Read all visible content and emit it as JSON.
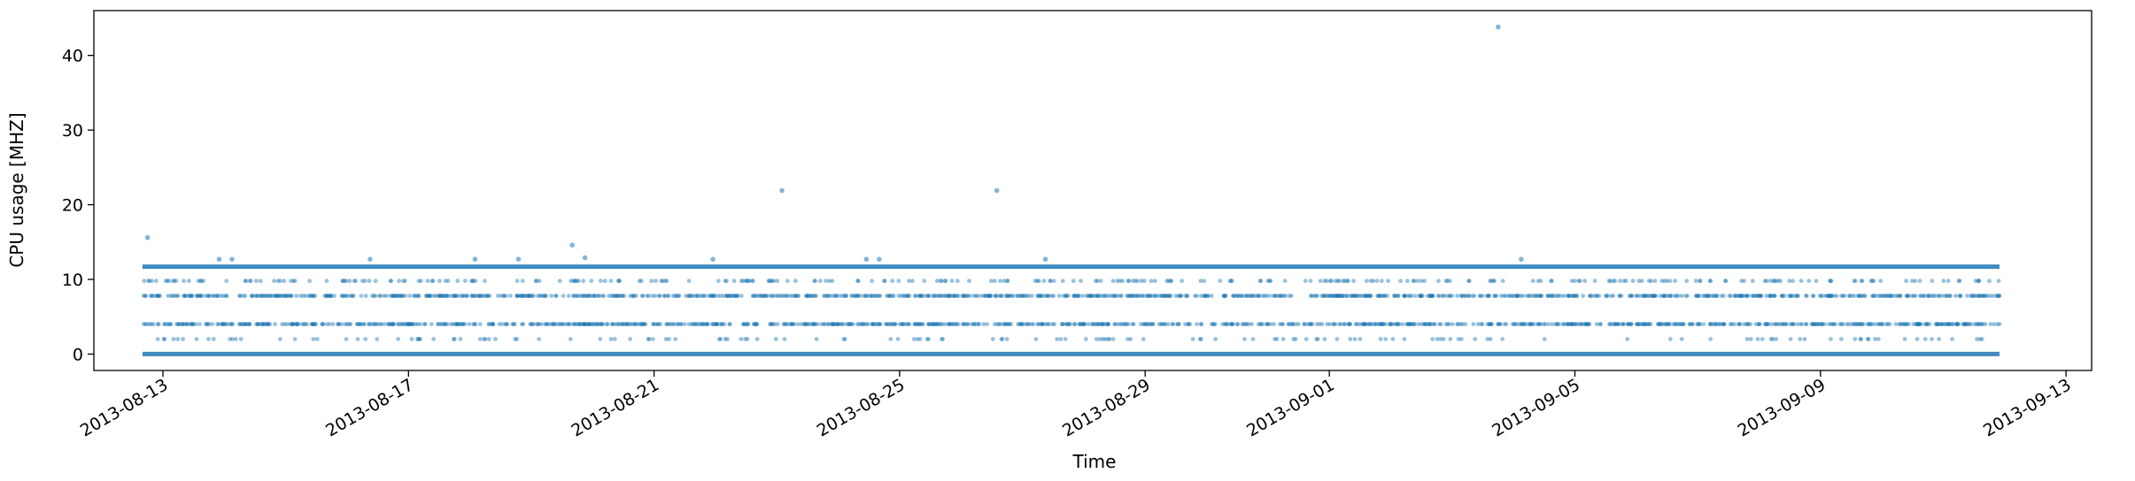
{
  "chart_data": {
    "type": "scatter",
    "xlabel": "Time",
    "ylabel": "CPU usage [MHZ]",
    "x_range": [
      "2013-08-11T21:00",
      "2013-09-13T10:00"
    ],
    "ylim": [
      -2.2,
      46
    ],
    "y_ticks": [
      0,
      10,
      20,
      30,
      40
    ],
    "x_ticks": [
      "2013-08-13",
      "2013-08-17",
      "2013-08-21",
      "2013-08-25",
      "2013-08-29",
      "2013-09-01",
      "2013-09-05",
      "2013-09-09",
      "2013-09-13"
    ],
    "grid": false,
    "color": "#1f77b4",
    "series": [
      {
        "x_start": "2013-08-12T16:00",
        "x_end": "2013-09-11T22:00",
        "dense_bands": [
          0,
          11.7
        ],
        "sparse_bands": [
          2,
          4,
          7.8,
          9.8
        ],
        "outliers": [
          {
            "x": "2013-08-12T18:00",
            "y": 15.6
          },
          {
            "x": "2013-08-13T22:00",
            "y": 12.7
          },
          {
            "x": "2013-08-14T03:00",
            "y": 12.7
          },
          {
            "x": "2013-08-16T09:00",
            "y": 12.7
          },
          {
            "x": "2013-08-18T02:00",
            "y": 12.7
          },
          {
            "x": "2013-08-18T19:00",
            "y": 12.7
          },
          {
            "x": "2013-08-19T16:00",
            "y": 14.6
          },
          {
            "x": "2013-08-19T21:00",
            "y": 12.9
          },
          {
            "x": "2013-08-21T23:00",
            "y": 12.7
          },
          {
            "x": "2013-08-23T02:00",
            "y": 21.9
          },
          {
            "x": "2013-08-24T11:00",
            "y": 12.7
          },
          {
            "x": "2013-08-24T16:00",
            "y": 12.7
          },
          {
            "x": "2013-08-26T14:00",
            "y": 21.9
          },
          {
            "x": "2013-08-27T09:00",
            "y": 12.7
          },
          {
            "x": "2013-09-03T18:00",
            "y": 43.8
          },
          {
            "x": "2013-09-04T03:00",
            "y": 12.7
          }
        ]
      }
    ]
  }
}
